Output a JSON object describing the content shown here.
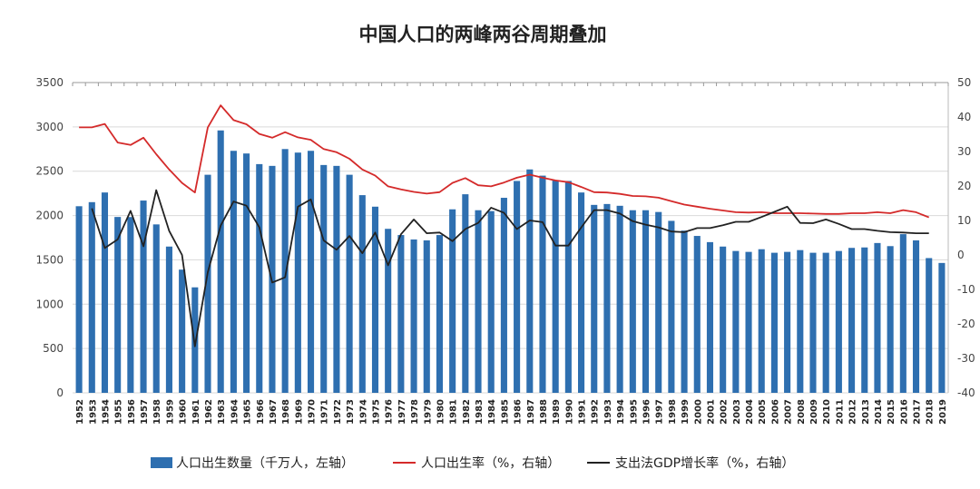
{
  "chart_data": {
    "type": "bar+line",
    "title": "中国人口的两峰两谷周期叠加",
    "categories": [
      "1952",
      "1953",
      "1954",
      "1955",
      "1956",
      "1957",
      "1958",
      "1959",
      "1960",
      "1961",
      "1962",
      "1963",
      "1964",
      "1965",
      "1966",
      "1967",
      "1968",
      "1969",
      "1970",
      "1971",
      "1972",
      "1973",
      "1974",
      "1975",
      "1976",
      "1977",
      "1978",
      "1979",
      "1980",
      "1981",
      "1982",
      "1983",
      "1984",
      "1985",
      "1986",
      "1987",
      "1988",
      "1989",
      "1990",
      "1991",
      "1992",
      "1993",
      "1994",
      "1995",
      "1996",
      "1997",
      "1998",
      "1999",
      "2000",
      "2001",
      "2002",
      "2003",
      "2004",
      "2005",
      "2006",
      "2007",
      "2008",
      "2009",
      "2010",
      "2011",
      "2012",
      "2013",
      "2014",
      "2015",
      "2016",
      "2017",
      "2018",
      "2019"
    ],
    "left_axis": {
      "ylim": [
        0,
        3500
      ],
      "ticks": [
        0,
        500,
        1000,
        1500,
        2000,
        2500,
        3000,
        3500
      ]
    },
    "right_axis": {
      "ylim": [
        -40,
        50
      ],
      "ticks": [
        -40,
        -30,
        -20,
        -10,
        0,
        10,
        20,
        30,
        40,
        50
      ]
    },
    "grid": true,
    "legend_placement": "bottom",
    "series": [
      {
        "name": "人口出生数量（千万人，左轴）",
        "type": "bar",
        "axis": "left",
        "color": "#2e6fb0",
        "values": [
          2105,
          2151,
          2260,
          1984,
          1983,
          2169,
          1900,
          1650,
          1390,
          1190,
          2460,
          2960,
          2730,
          2700,
          2580,
          2560,
          2750,
          2710,
          2730,
          2570,
          2560,
          2460,
          2230,
          2100,
          1850,
          1780,
          1730,
          1720,
          1780,
          2070,
          2240,
          2060,
          2050,
          2200,
          2390,
          2520,
          2450,
          2400,
          2390,
          2260,
          2120,
          2130,
          2110,
          2060,
          2060,
          2040,
          1940,
          1830,
          1770,
          1700,
          1650,
          1600,
          1590,
          1620,
          1580,
          1590,
          1610,
          1580,
          1580,
          1600,
          1635,
          1640,
          1690,
          1655,
          1790,
          1720,
          1520,
          1465
        ]
      },
      {
        "name": "人口出生率（%，右轴）",
        "type": "line",
        "axis": "right",
        "color": "#d42a2a",
        "values": [
          37,
          37,
          38,
          32.6,
          31.9,
          34,
          29.2,
          24.8,
          20.9,
          18.1,
          37,
          43.4,
          39.1,
          37.9,
          35.1,
          34,
          35.6,
          34.1,
          33.4,
          30.7,
          29.8,
          27.9,
          24.8,
          23,
          19.9,
          19,
          18.3,
          17.8,
          18.2,
          20.9,
          22.3,
          20.2,
          19.9,
          21,
          22.4,
          23.3,
          22.4,
          21.6,
          21.1,
          19.7,
          18.2,
          18.1,
          17.7,
          17.1,
          17,
          16.6,
          15.6,
          14.6,
          14,
          13.4,
          12.9,
          12.4,
          12.3,
          12.4,
          12.1,
          12.1,
          12.1,
          12,
          11.9,
          11.9,
          12.1,
          12.1,
          12.4,
          12.1,
          13,
          12.4,
          10.9,
          null
        ]
      },
      {
        "name": "支出法GDP增长率（%，右轴）",
        "type": "line",
        "axis": "right",
        "color": "#222222",
        "values": [
          null,
          13.5,
          2,
          4.5,
          12.8,
          2.5,
          18.8,
          7,
          0,
          -26.5,
          -5,
          8.5,
          15.5,
          14.3,
          8,
          -8,
          -6.5,
          14,
          16.1,
          4.2,
          1.5,
          5.5,
          0.5,
          6.5,
          -3,
          6,
          10.3,
          6.3,
          6.5,
          4,
          7.5,
          9.3,
          13.7,
          12.2,
          7.5,
          10,
          9.5,
          2.7,
          2.7,
          8,
          13,
          13,
          12,
          9.8,
          8.8,
          8,
          6.8,
          6.6,
          7.8,
          7.8,
          8.6,
          9.6,
          9.6,
          11,
          12.5,
          14,
          9.3,
          9.2,
          10.3,
          9,
          7.5,
          7.5,
          7,
          6.6,
          6.5,
          6.3,
          6.3,
          null
        ]
      }
    ]
  }
}
